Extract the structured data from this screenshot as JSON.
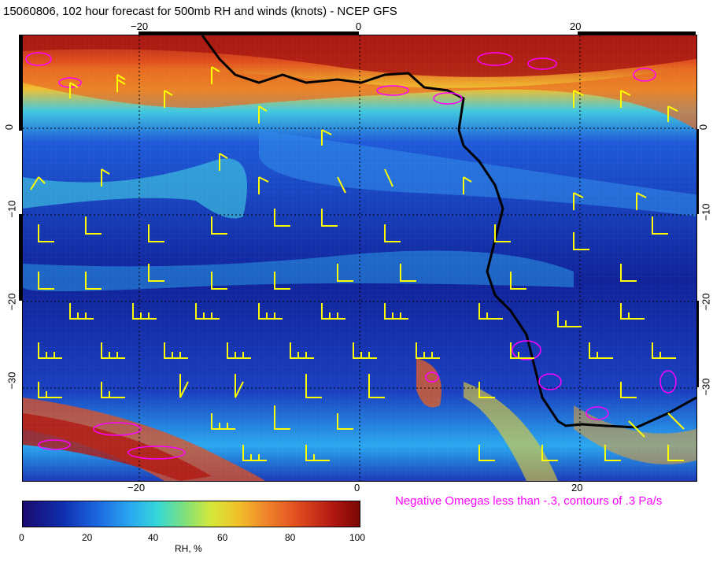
{
  "title": "15060806, 102 hour forecast for 500mb RH and winds (knots) - NCEP GFS",
  "top_ticks": [
    "−20",
    "0",
    "20"
  ],
  "bottom_ticks": [
    "−20",
    "0",
    "20"
  ],
  "left_ticks": [
    "0",
    "−10",
    "−20",
    "−30"
  ],
  "right_ticks": [
    "0",
    "−10",
    "−20",
    "−30"
  ],
  "omega_note": "Negative Omegas less than -.3, contours of .3 Pa/s",
  "colorbar": {
    "title": "RH, %",
    "labels": [
      "0",
      "20",
      "40",
      "60",
      "80",
      "100"
    ]
  },
  "colors": {
    "wind_barb": "#ffff00",
    "omega_contour": "#ff00ff",
    "coastline": "#000000"
  }
}
